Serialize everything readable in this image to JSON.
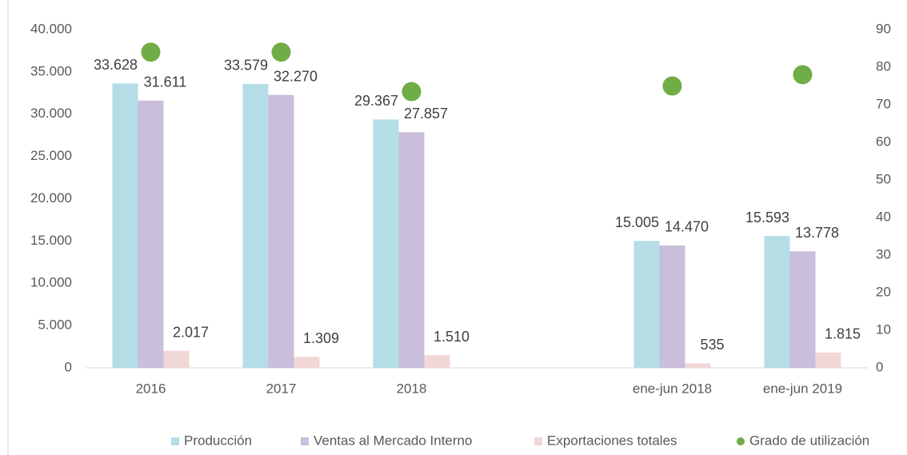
{
  "chart_data": {
    "type": "bar",
    "categories": [
      "2016",
      "2017",
      "2018",
      null,
      "ene-jun 2018",
      "ene-jun 2019"
    ],
    "series": [
      {
        "name": "Producción",
        "color": "#b4dde6",
        "values": [
          33628,
          33579,
          29367,
          null,
          15005,
          15593
        ],
        "value_labels": [
          "33.628",
          "33.579",
          "29.367",
          null,
          "15.005",
          "15.593"
        ]
      },
      {
        "name": "Ventas al Mercado Interno",
        "color": "#c9bedb",
        "values": [
          31611,
          32270,
          27857,
          null,
          14470,
          13778
        ],
        "value_labels": [
          "31.611",
          "32.270",
          "27.857",
          null,
          "14.470",
          "13.778"
        ]
      },
      {
        "name": "Exportaciones totales",
        "color": "#f2d7d7",
        "values": [
          2017,
          1309,
          1510,
          null,
          535,
          1815
        ],
        "value_labels": [
          "2.017",
          "1.309",
          "1.510",
          null,
          "535",
          "1.815"
        ]
      },
      {
        "name": "Grado de utilización",
        "color": "#70ad47",
        "type": "scatter",
        "axis": "y2",
        "values": [
          84,
          84,
          73.5,
          null,
          75,
          78
        ]
      }
    ],
    "ylim": [
      0,
      40000
    ],
    "yticks": [
      0,
      {
        "value": 5000,
        "label": "5.000"
      },
      {
        "value": 10000,
        "label": "10.000"
      },
      {
        "value": 15000,
        "label": "15.000"
      },
      {
        "value": 20000,
        "label": "20.000"
      },
      {
        "value": 25000,
        "label": "25.000"
      },
      {
        "value": 30000,
        "label": "30.000"
      },
      {
        "value": 35000,
        "label": "35.000"
      },
      {
        "value": 40000,
        "label": "40.000"
      }
    ],
    "y2lim": [
      0,
      90
    ],
    "y2ticks": [
      0,
      10,
      20,
      30,
      40,
      50,
      60,
      70,
      80,
      90
    ],
    "legend": "bottom"
  }
}
